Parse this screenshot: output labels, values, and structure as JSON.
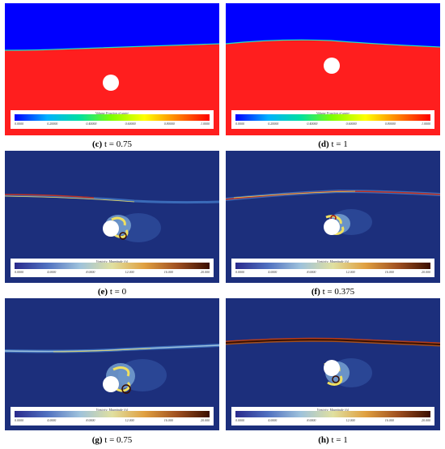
{
  "colorbars": {
    "volume": {
      "title": "Volume Fraction of water",
      "ticks": [
        "0.0000",
        "0.20000",
        "0.40000",
        "0.60000",
        "0.80000",
        "1.0000"
      ],
      "stops": [
        "#0000ff",
        "#00b0ff",
        "#00e0a0",
        "#80ff00",
        "#ffff00",
        "#ff8000",
        "#ff0000"
      ]
    },
    "vorticity": {
      "title": "Vorticity: Magnitude (/s)",
      "ticks": [
        "0.0000",
        "4.0000",
        "8.0000",
        "12.000",
        "16.000",
        "20.000"
      ],
      "stops": [
        "#2a2a8c",
        "#5070c0",
        "#9ec2dc",
        "#e0e0a0",
        "#e0a040",
        "#a05020",
        "#3a0e00"
      ]
    }
  },
  "colors": {
    "water": "#ff1e1e",
    "air": "#0000ff",
    "vorticity_background": "#1c2f7c",
    "cylinder": "#ffffff"
  },
  "panels": [
    {
      "id": "c",
      "label": "(c)",
      "time": "t = 0.75",
      "field": "volume"
    },
    {
      "id": "d",
      "label": "(d)",
      "time": "t = 1",
      "field": "volume"
    },
    {
      "id": "e",
      "label": "(e)",
      "time": "t = 0",
      "field": "vorticity"
    },
    {
      "id": "f",
      "label": "(f)",
      "time": "t = 0.375",
      "field": "vorticity"
    },
    {
      "id": "g",
      "label": "(g)",
      "time": "t = 0.75",
      "field": "vorticity"
    },
    {
      "id": "h",
      "label": "(h)",
      "time": "t = 1",
      "field": "vorticity"
    }
  ]
}
